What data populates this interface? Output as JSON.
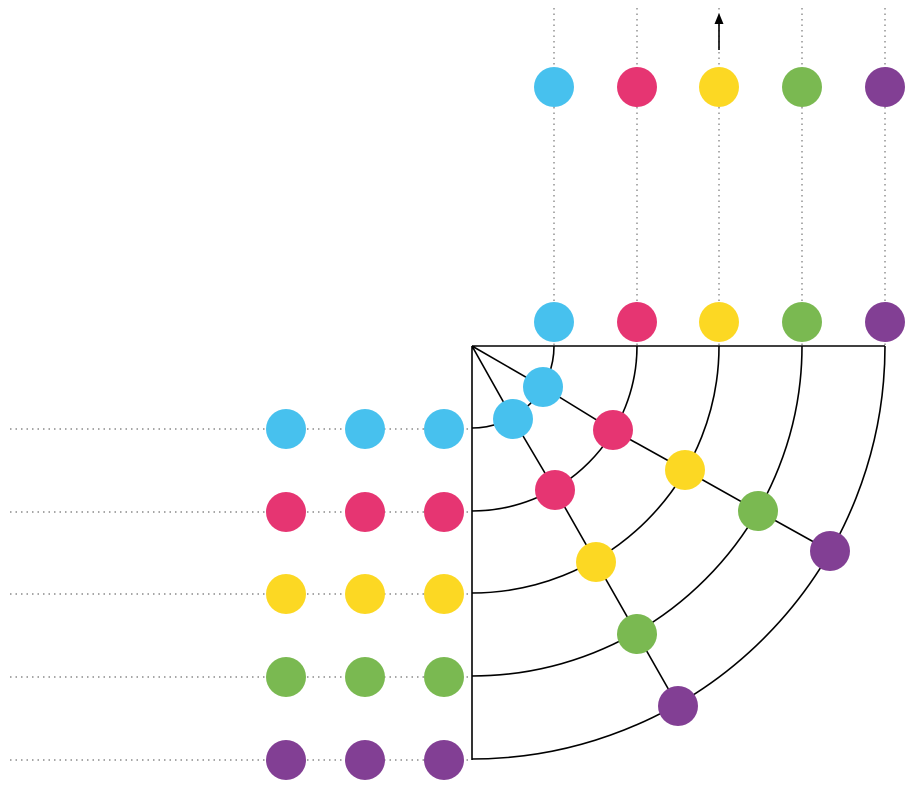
{
  "diagram": {
    "description_free": true,
    "lanes": [
      {
        "id": "lane-1",
        "color": "#47C1EE"
      },
      {
        "id": "lane-2",
        "color": "#E63572"
      },
      {
        "id": "lane-3",
        "color": "#FCD823"
      },
      {
        "id": "lane-4",
        "color": "#7AB951"
      },
      {
        "id": "lane-5",
        "color": "#823F94"
      }
    ],
    "line_color": "#000000",
    "guide_color": "#8a8a8a",
    "arrow_icon": "arrow-up-icon"
  }
}
